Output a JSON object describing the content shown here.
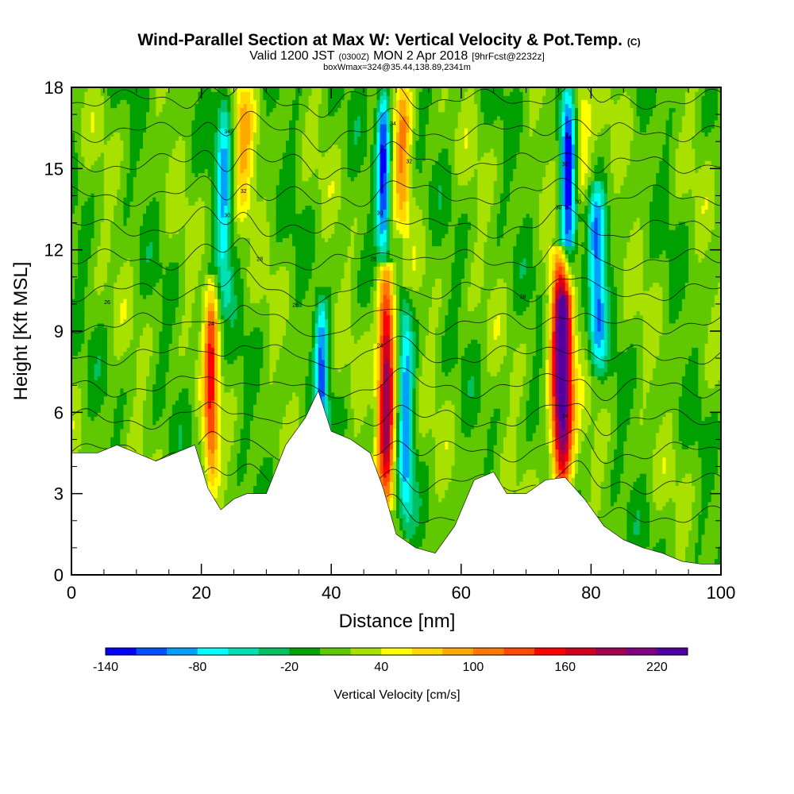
{
  "chart_data": {
    "type": "heatmap",
    "title": "Wind-Parallel Section at Max W: Vertical Velocity & Pot.Temp.",
    "title_mark": "(C)",
    "subtitle_parts": [
      "Valid 1200 JST",
      "(0300Z)",
      "MON 2 Apr 2018",
      "[9hrFcst@2232z]"
    ],
    "subtitle2": "boxWmax=324@35.44,138.89,2341m",
    "xlabel": "Distance [nm]",
    "ylabel": "Height [Kft MSL]",
    "xlim": [
      0,
      100
    ],
    "ylim": [
      0,
      18
    ],
    "x_ticks": [
      0,
      20,
      40,
      60,
      80,
      100
    ],
    "y_ticks": [
      0,
      3,
      6,
      9,
      12,
      15,
      18
    ],
    "x_tick_labels": [
      "0",
      "20",
      "40",
      "60",
      "80",
      "100"
    ],
    "y_tick_labels": [
      "0",
      "3",
      "6",
      "9",
      "12",
      "15",
      "18"
    ],
    "colorbar": {
      "label": "Vertical Velocity [cm/s]",
      "min": -140,
      "max": 240,
      "step": 20,
      "tick_values": [
        -140,
        -80,
        -20,
        40,
        100,
        160,
        220
      ],
      "tick_labels": [
        "-140",
        "-80",
        "-20",
        "40",
        "100",
        "160",
        "220"
      ],
      "colors": [
        "#0000ff",
        "#0050ff",
        "#00a0ff",
        "#00ffff",
        "#00e0b0",
        "#00c060",
        "#00a000",
        "#60c800",
        "#a8e000",
        "#ffff00",
        "#ffd800",
        "#ffa800",
        "#ff7800",
        "#ff4800",
        "#ff0000",
        "#d00020",
        "#a00050",
        "#800080",
        "#5000a0"
      ]
    },
    "terrain": [
      [
        0,
        4.5
      ],
      [
        4,
        4.5
      ],
      [
        7,
        4.8
      ],
      [
        10,
        4.5
      ],
      [
        13,
        4.2
      ],
      [
        16,
        4.5
      ],
      [
        19,
        4.8
      ],
      [
        21,
        3.2
      ],
      [
        23,
        2.4
      ],
      [
        25,
        2.8
      ],
      [
        27,
        3.0
      ],
      [
        30,
        3.0
      ],
      [
        33,
        4.8
      ],
      [
        36,
        5.8
      ],
      [
        38,
        6.8
      ],
      [
        40,
        5.3
      ],
      [
        43,
        5.0
      ],
      [
        46,
        4.5
      ],
      [
        48,
        3.2
      ],
      [
        50,
        1.5
      ],
      [
        53,
        1.0
      ],
      [
        56,
        0.8
      ],
      [
        59,
        1.8
      ],
      [
        62,
        3.5
      ],
      [
        65,
        3.8
      ],
      [
        67,
        3.0
      ],
      [
        70,
        3.0
      ],
      [
        73,
        3.5
      ],
      [
        76,
        3.6
      ],
      [
        79,
        2.8
      ],
      [
        82,
        1.8
      ],
      [
        85,
        1.3
      ],
      [
        88,
        1.0
      ],
      [
        91,
        0.8
      ],
      [
        94,
        0.5
      ],
      [
        97,
        0.4
      ],
      [
        100,
        0.4
      ]
    ],
    "updrafts": [
      {
        "x": 21.5,
        "z_bottom": 3.5,
        "z_top": 10.5,
        "peak": 120,
        "width": 1.1
      },
      {
        "x": 48.5,
        "z_bottom": 3.0,
        "z_top": 11.0,
        "peak": 190,
        "width": 1.3
      },
      {
        "x": 75.5,
        "z_bottom": 3.5,
        "z_top": 11.5,
        "peak": 240,
        "width": 1.6
      },
      {
        "x": 26.5,
        "z_bottom": 13.0,
        "z_top": 18.0,
        "peak": 60,
        "width": 1.5
      },
      {
        "x": 51.0,
        "z_bottom": 13.0,
        "z_top": 18.0,
        "peak": 80,
        "width": 1.3
      },
      {
        "x": 78.5,
        "z_bottom": 14.0,
        "z_top": 18.0,
        "peak": 60,
        "width": 1.5
      }
    ],
    "downdrafts": [
      {
        "x": 23.5,
        "z_bottom": 10.0,
        "z_top": 18.0,
        "peak": -80,
        "width": 1.2
      },
      {
        "x": 38.5,
        "z_bottom": 5.0,
        "z_top": 10.0,
        "peak": -100,
        "width": 1.0
      },
      {
        "x": 48.0,
        "z_bottom": 12.0,
        "z_top": 18.0,
        "peak": -130,
        "width": 1.0
      },
      {
        "x": 51.5,
        "z_bottom": 2.0,
        "z_top": 10.0,
        "peak": -90,
        "width": 1.2
      },
      {
        "x": 76.5,
        "z_bottom": 11.0,
        "z_top": 18.0,
        "peak": -140,
        "width": 1.2
      },
      {
        "x": 81.0,
        "z_bottom": 8.0,
        "z_top": 14.0,
        "peak": -110,
        "width": 1.3
      }
    ],
    "theta_labels": [
      {
        "x": 24,
        "z": 16.3,
        "text": "34"
      },
      {
        "x": 26.5,
        "z": 14.1,
        "text": "32"
      },
      {
        "x": 24,
        "z": 13.2,
        "text": "30"
      },
      {
        "x": 29,
        "z": 11.6,
        "text": "28"
      },
      {
        "x": 5.5,
        "z": 10.0,
        "text": "26"
      },
      {
        "x": 21.5,
        "z": 9.2,
        "text": "24"
      },
      {
        "x": 34.5,
        "z": 9.9,
        "text": "26"
      },
      {
        "x": 49.5,
        "z": 16.6,
        "text": "34"
      },
      {
        "x": 52,
        "z": 15.2,
        "text": "32"
      },
      {
        "x": 47.5,
        "z": 13.3,
        "text": "30"
      },
      {
        "x": 46.5,
        "z": 11.6,
        "text": "28"
      },
      {
        "x": 47.5,
        "z": 8.4,
        "text": "24"
      },
      {
        "x": 76.5,
        "z": 16.1,
        "text": "34"
      },
      {
        "x": 76,
        "z": 15.1,
        "text": "32"
      },
      {
        "x": 75,
        "z": 13.5,
        "text": "30"
      },
      {
        "x": 78,
        "z": 13.7,
        "text": "30"
      },
      {
        "x": 69.5,
        "z": 10.2,
        "text": "28"
      },
      {
        "x": 76,
        "z": 5.8,
        "text": "24"
      }
    ]
  }
}
